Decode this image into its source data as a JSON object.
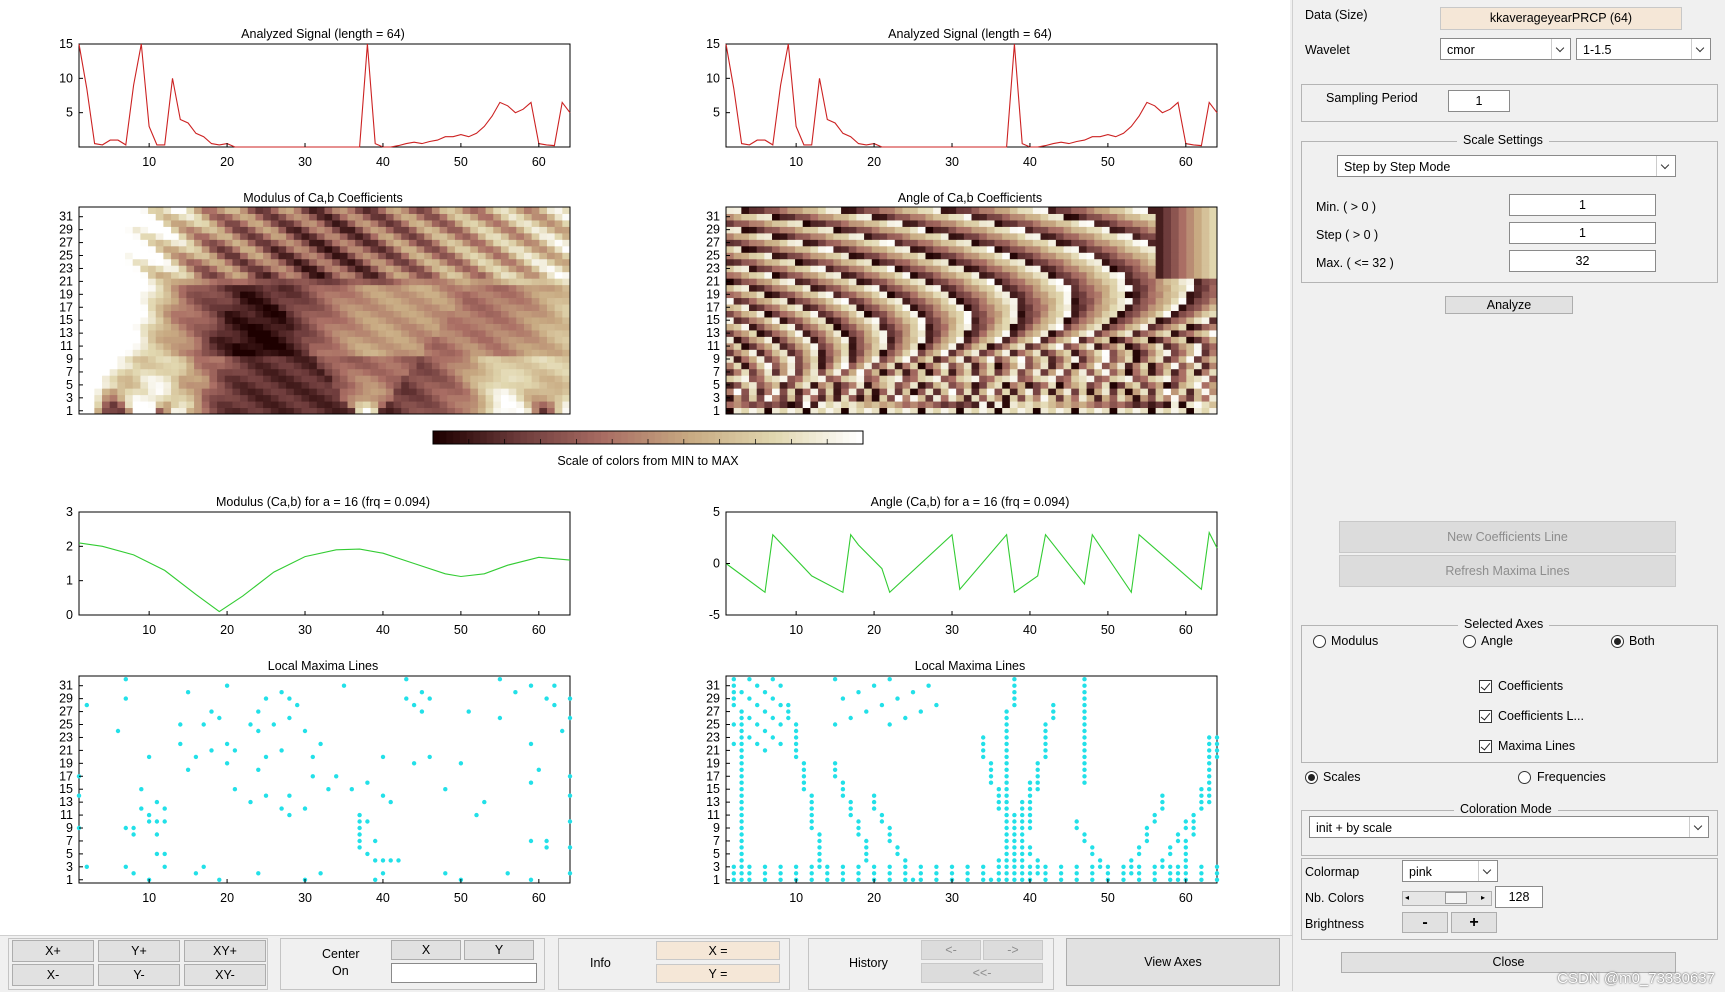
{
  "plots": {
    "signal_left_title": "Analyzed Signal (length = 64)",
    "signal_right_title": "Analyzed Signal (length = 64)",
    "modulus_title": "Modulus of Ca,b Coefficients",
    "angle_title": "Angle of Ca,b Coefficients",
    "colorbar_label": "Scale of colors from MIN to MAX",
    "mod_line_title": "Modulus (Ca,b) for a = 16  (frq =   0.094)",
    "ang_line_title": "Angle (Ca,b) for a = 16  (frq =   0.094)",
    "maxima_left_title": "Local Maxima Lines",
    "maxima_right_title": "Local Maxima Lines",
    "x_ticks": [
      "10",
      "20",
      "30",
      "40",
      "50",
      "60"
    ],
    "scale_ticks": [
      "1",
      "3",
      "5",
      "7",
      "9",
      "11",
      "13",
      "15",
      "17",
      "19",
      "21",
      "23",
      "25",
      "27",
      "29",
      "31"
    ],
    "signal_yticks": [
      "5",
      "10",
      "15"
    ],
    "mod_yticks": [
      "0",
      "1",
      "2",
      "3"
    ],
    "ang_yticks": [
      "-5",
      "0",
      "5"
    ]
  },
  "chart_data": [
    {
      "type": "line",
      "title": "Analyzed Signal (length = 64)",
      "color": "#cc2222",
      "xlim": [
        1,
        64
      ],
      "ylim": [
        0,
        15
      ],
      "x": [
        1,
        2,
        3,
        4,
        5,
        6,
        7,
        8,
        9,
        10,
        11,
        12,
        13,
        14,
        15,
        16,
        17,
        18,
        19,
        20,
        21,
        22,
        23,
        24,
        25,
        26,
        27,
        28,
        29,
        30,
        31,
        32,
        33,
        34,
        35,
        36,
        37,
        38,
        39,
        40,
        41,
        42,
        43,
        44,
        45,
        46,
        47,
        48,
        49,
        50,
        51,
        52,
        53,
        54,
        55,
        56,
        57,
        58,
        59,
        60,
        61,
        62,
        63,
        64
      ],
      "y": [
        15,
        8.5,
        0.5,
        0.3,
        1,
        1,
        0.3,
        9,
        15,
        3,
        0.3,
        0.3,
        10,
        4,
        3.5,
        2,
        1.5,
        0.5,
        0.3,
        0.5,
        0,
        0,
        0,
        0,
        0,
        0,
        0,
        0,
        0,
        0,
        0,
        0,
        0,
        0,
        0,
        0,
        0,
        15,
        0.5,
        0,
        0,
        0.2,
        0.5,
        0.7,
        0.5,
        0.8,
        1,
        1.5,
        1.5,
        1.8,
        1.5,
        2,
        3,
        4.5,
        6.5,
        6,
        5,
        5.5,
        6.5,
        0.5,
        0.3,
        0.2,
        6.5,
        5
      ]
    },
    {
      "type": "line",
      "title": "Modulus (Ca,b) for a = 16  (frq =   0.094)",
      "color": "#33cc33",
      "xlim": [
        1,
        64
      ],
      "ylim": [
        0,
        3
      ],
      "x": [
        1,
        4,
        8,
        12,
        16,
        19,
        22,
        26,
        30,
        34,
        37,
        40,
        44,
        48,
        50,
        53,
        56,
        60,
        64
      ],
      "y": [
        2.1,
        2.0,
        1.75,
        1.3,
        0.6,
        0.1,
        0.55,
        1.25,
        1.7,
        1.9,
        1.92,
        1.8,
        1.5,
        1.2,
        1.12,
        1.2,
        1.45,
        1.68,
        1.6
      ]
    },
    {
      "type": "line",
      "title": "Angle (Ca,b) for a = 16  (frq =   0.094)",
      "color": "#33cc33",
      "xlim": [
        1,
        64
      ],
      "ylim": [
        -5,
        5
      ],
      "x": [
        1,
        6,
        7,
        12,
        16,
        17,
        18,
        21,
        22,
        30,
        31,
        37,
        38,
        41,
        42,
        47,
        48,
        53,
        54,
        62,
        63,
        64
      ],
      "y": [
        0,
        -2.8,
        2.8,
        -1.2,
        -2.8,
        2.8,
        1.8,
        -0.5,
        -2.8,
        2.8,
        -2.5,
        2.8,
        -2.8,
        -1.2,
        2.8,
        -2,
        2.8,
        -2.8,
        2.8,
        -2.5,
        3,
        1.5
      ]
    }
  ],
  "panel": {
    "data_label": "Data  (Size)",
    "data_value": "kkaverageyearPRCP  (64)",
    "wavelet_label": "Wavelet",
    "wavelet_family": "cmor",
    "wavelet_param": "1-1.5",
    "sampling_label": "Sampling Period",
    "sampling_value": "1",
    "scale_settings_title": "Scale Settings",
    "scale_mode": "Step by Step Mode",
    "min_label": "Min.  ( > 0 )",
    "min_value": "1",
    "step_label": "Step  ( > 0 )",
    "step_value": "1",
    "max_label": "Max.  ( <= 32 )",
    "max_value": "32",
    "analyze_label": "Analyze",
    "new_coef_label": "New Coefficients Line",
    "refresh_maxima_label": "Refresh Maxima Lines",
    "selected_axes_title": "Selected Axes",
    "radio_modulus": "Modulus",
    "radio_angle": "Angle",
    "radio_both": "Both",
    "chk_coefficients": "Coefficients",
    "chk_coefficients_l": "Coefficients L...",
    "chk_maxima": "Maxima Lines",
    "radio_scales": "Scales",
    "radio_frequencies": "Frequencies",
    "coloration_title": "Coloration Mode",
    "coloration_value": "init + by scale",
    "colormap_label": "Colormap",
    "colormap_value": "pink",
    "nbcolors_label": "Nb. Colors",
    "nbcolors_value": "128",
    "brightness_label": "Brightness",
    "minus_label": "-",
    "plus_label": "+",
    "close_label": "Close"
  },
  "bottom": {
    "xplus": "X+",
    "yplus": "Y+",
    "xyplus": "XY+",
    "xminus": "X-",
    "yminus": "Y-",
    "xyminus": "XY-",
    "center_on_1": "Center",
    "center_on_2": "On",
    "x_btn": "X",
    "y_btn": "Y",
    "info_label": "Info",
    "x_eq": "X =",
    "y_eq": "Y =",
    "history_label": "History",
    "hist_prev": "<-",
    "hist_next": "->",
    "hist_first": "<<-",
    "view_axes": "View Axes"
  },
  "watermark": "CSDN @m0_73330637",
  "colors": {
    "signal": "#cc2222",
    "line": "#33cc33",
    "maxima": "#22e0e8",
    "data_field": "#f5e7d7"
  }
}
